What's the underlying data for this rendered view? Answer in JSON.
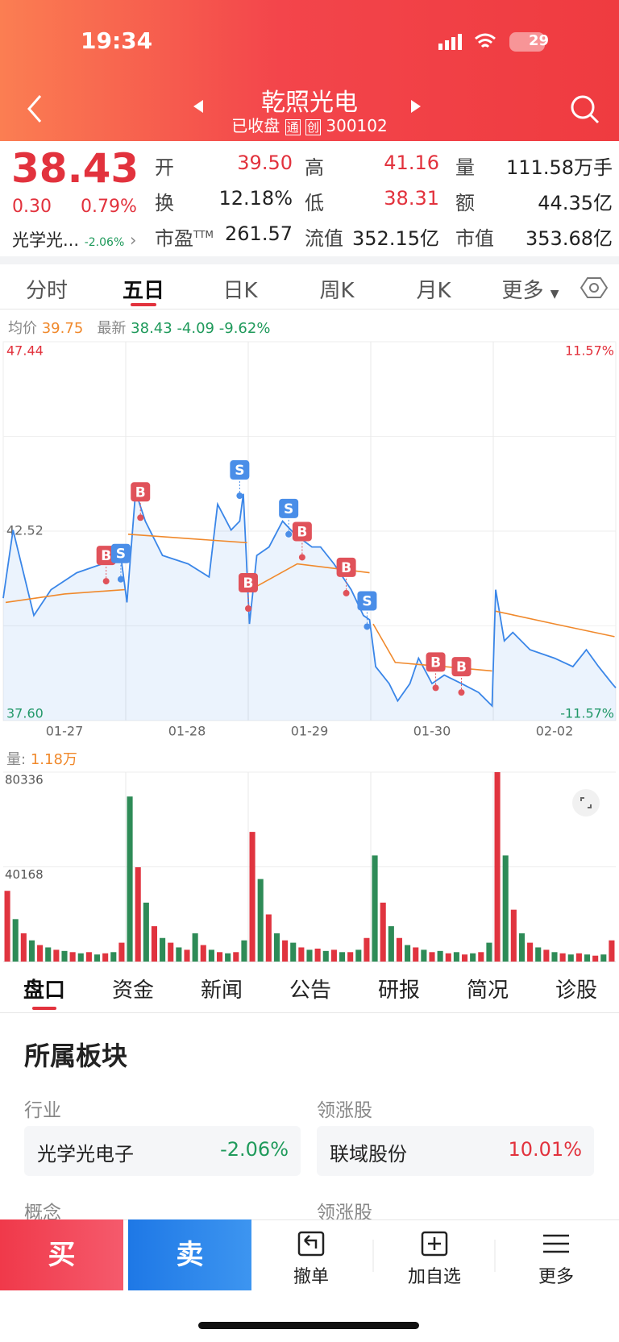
{
  "status": {
    "time": "19:34",
    "battery": "29"
  },
  "header": {
    "title": "乾照光电",
    "state": "已收盘",
    "badges": [
      "通",
      "创"
    ],
    "code": "300102"
  },
  "quote": {
    "price": "38.43",
    "change": "0.30",
    "change_pct": "0.79%",
    "sector": "光学光...",
    "sector_pct": "-2.06%",
    "fields": [
      [
        {
          "label": "开",
          "value": "39.50"
        },
        {
          "label": "高",
          "value": "41.16"
        },
        {
          "label": "量",
          "value": "111.58万手"
        }
      ],
      [
        {
          "label": "换",
          "value": "12.18%"
        },
        {
          "label": "低",
          "value": "38.31"
        },
        {
          "label": "额",
          "value": "44.35亿"
        }
      ],
      [
        {
          "label": "市盈",
          "label_sup": "TTM",
          "value": "261.57"
        },
        {
          "label": "流值",
          "value": "352.15亿"
        },
        {
          "label": "市值",
          "value": "353.68亿"
        }
      ]
    ]
  },
  "chart_tabs": [
    "分时",
    "五日",
    "日K",
    "周K",
    "月K",
    "更多"
  ],
  "info": {
    "avg_label": "均价",
    "avg": "39.75",
    "last_label": "最新",
    "last": "38.43",
    "change": "-4.09",
    "change_pct": "-9.62%"
  },
  "volume_info": {
    "label": "量:",
    "value": "1.18万"
  },
  "chart_data": [
    {
      "type": "line",
      "xlim": [
        0,
        5
      ],
      "xticks": [
        {
          "value": 0.5,
          "label": "01-27"
        },
        {
          "value": 1.5,
          "label": "01-28"
        },
        {
          "value": 2.5,
          "label": "01-29"
        },
        {
          "value": 3.5,
          "label": "01-30"
        },
        {
          "value": 4.5,
          "label": "02-02"
        }
      ],
      "ylim": [
        37.6,
        47.44
      ],
      "yticks": [
        {
          "value": 37.6,
          "label": "37.60"
        },
        42.52,
        47.44
      ],
      "y2lim": [
        -11.57,
        11.57
      ],
      "y2ticks": [
        {
          "value": -11.57,
          "label": "-11.57%"
        },
        {
          "value": 11.57,
          "label": "11.57%"
        }
      ],
      "series": [
        {
          "color": "#3a86e8",
          "x": [
            0,
            0.08,
            0.25,
            0.39,
            0.6,
            0.81,
            0.95,
            1.01,
            1.08,
            1.16,
            1.3,
            1.51,
            1.68,
            1.75,
            1.86,
            1.93,
            1.96,
            2.01,
            2.07,
            2.17,
            2.28,
            2.38,
            2.52,
            2.59,
            2.7,
            2.84,
            2.94,
            2.99,
            3.04,
            3.15,
            3.22,
            3.32,
            3.39,
            3.5,
            3.6,
            3.74,
            3.88,
            3.99,
            4.02,
            4.09,
            4.16,
            4.3,
            4.5,
            4.65,
            4.76,
            4.86,
            4.97,
            5
          ],
          "values": [
            40.78,
            42.55,
            40.33,
            41.0,
            41.44,
            41.67,
            42.11,
            40.67,
            43.55,
            42.78,
            41.89,
            41.67,
            41.33,
            43.22,
            42.55,
            42.78,
            43.49,
            40.11,
            41.89,
            42.11,
            42.78,
            42.44,
            42.11,
            42.11,
            41.67,
            41.0,
            40.33,
            40.22,
            39.0,
            38.56,
            38.11,
            38.56,
            39.22,
            38.56,
            38.78,
            38.56,
            38.33,
            37.98,
            41.0,
            39.67,
            39.89,
            39.44,
            39.22,
            39.0,
            39.44,
            39.0,
            38.56,
            38.45
          ]
        },
        {
          "color": "#f0892c",
          "x": [
            0.02,
            0.5,
            0.99,
            null,
            1.02,
            1.5,
            1.99,
            null,
            2.02,
            2.4,
            2.99,
            null,
            3.02,
            3.2,
            3.6,
            3.99,
            null,
            4.02,
            4.5,
            4.99
          ],
          "values": [
            40.67,
            40.89,
            41.0,
            null,
            42.44,
            42.33,
            42.22,
            null,
            41.0,
            41.67,
            41.44,
            null,
            40.11,
            39.11,
            39.0,
            38.89,
            null,
            40.44,
            40.11,
            39.78
          ]
        }
      ],
      "markers": [
        {
          "label": "B",
          "x": 0.84,
          "value": 41.22
        },
        {
          "label": "S",
          "x": 0.96,
          "value": 41.27
        },
        {
          "label": "B",
          "x": 1.12,
          "value": 42.87
        },
        {
          "label": "S",
          "x": 1.93,
          "value": 43.44
        },
        {
          "label": "B",
          "x": 2.0,
          "value": 40.51
        },
        {
          "label": "S",
          "x": 2.33,
          "value": 42.44
        },
        {
          "label": "B",
          "x": 2.44,
          "value": 41.84
        },
        {
          "label": "B",
          "x": 2.8,
          "value": 40.91
        },
        {
          "label": "S",
          "x": 2.97,
          "value": 40.04
        },
        {
          "label": "B",
          "x": 3.53,
          "value": 38.45
        },
        {
          "label": "B",
          "x": 3.74,
          "value": 38.33
        }
      ]
    },
    {
      "type": "bar",
      "colors": [
        "#e0343f",
        "#2e8b57"
      ],
      "ylim": [
        0,
        80336
      ],
      "yticks": [
        40168,
        80336
      ],
      "values": [
        30000,
        18000,
        12000,
        9000,
        7000,
        6000,
        5000,
        4500,
        4000,
        3500,
        4000,
        3000,
        3500,
        4000,
        8000,
        70000,
        40000,
        25000,
        15000,
        10000,
        8000,
        6000,
        5000,
        12000,
        7000,
        5000,
        4000,
        3500,
        4000,
        9000,
        55000,
        35000,
        20000,
        12000,
        9000,
        8000,
        6000,
        5000,
        5500,
        4500,
        5000,
        4000,
        4000,
        5000,
        10000,
        45000,
        25000,
        15000,
        10000,
        7000,
        6000,
        5000,
        4000,
        4500,
        3500,
        4000,
        3000,
        3500,
        4000,
        8000,
        80336,
        45000,
        22000,
        12000,
        8000,
        6000,
        5000,
        4000,
        3500,
        3000,
        3500,
        3000,
        2500,
        3000,
        9000
      ]
    }
  ],
  "detail_tabs": [
    "盘口",
    "资金",
    "新闻",
    "公告",
    "研报",
    "简况",
    "诊股"
  ],
  "sectors": {
    "title": "所属板块",
    "industry_label": "行业",
    "leader_label": "领涨股",
    "industry": "光学光电子",
    "industry_pct": "-2.06%",
    "leader": "联域股份",
    "leader_pct": "10.01%",
    "concept_label": "概念",
    "concept_leader_label": "领涨股"
  },
  "actions": {
    "buy": "买",
    "sell": "卖",
    "cancel": "撤单",
    "watch": "加自选",
    "more": "更多"
  }
}
